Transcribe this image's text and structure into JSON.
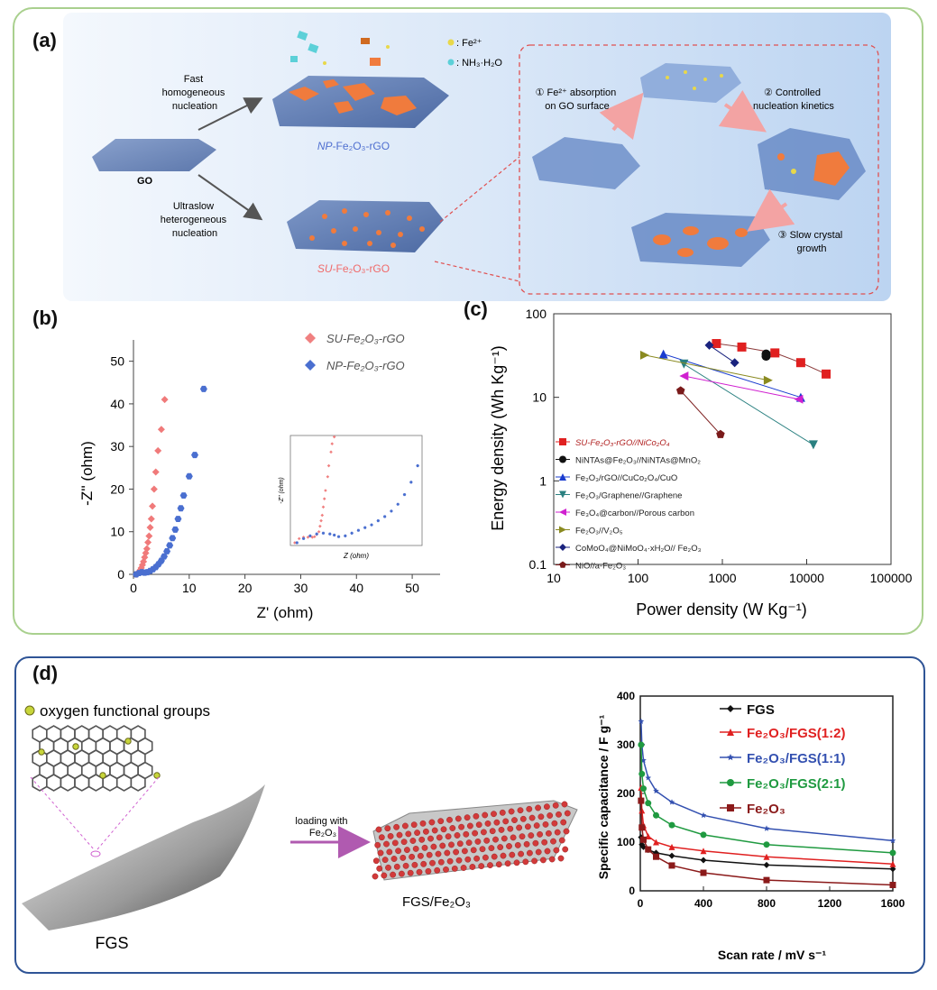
{
  "panel_a": {
    "label": "(a)",
    "go_label": "GO",
    "fast_text": [
      "Fast",
      "homogeneous",
      "nucleation"
    ],
    "ultra_text": [
      "Ultraslow",
      "heterogeneous",
      "nucleation"
    ],
    "np_label_prefix": "NP",
    "np_label_rest": "-Fe₂O₃-rGO",
    "su_label_prefix": "SU",
    "su_label_rest": "-Fe₂O₃-rGO",
    "legend_fe": ": Fe²⁺",
    "legend_nh3": ": NH₃·H₂O",
    "step1": [
      "① Fe²⁺ absorption",
      "on GO surface"
    ],
    "step2": [
      "② Controlled",
      "nucleation kinetics"
    ],
    "step3": [
      "③ Slow crystal",
      "growth"
    ],
    "colors": {
      "background": "#cfe0f6",
      "su": "#f06a6a",
      "np": "#4f6fd0"
    }
  },
  "panel_b": {
    "label": "(b)",
    "xlabel": "Z' (ohm)",
    "ylabel": "-Z'' (ohm)",
    "xticks": [
      "0",
      "10",
      "20",
      "30",
      "40",
      "50"
    ],
    "yticks": [
      "0",
      "10",
      "20",
      "30",
      "40",
      "50"
    ],
    "legend": [
      "SU-Fe₂O₃-rGO",
      "NP-Fe₂O₃-rGO"
    ],
    "inset_xlabel": "Z (ohm)",
    "inset_ylabel": "-Z'' (ohm)"
  },
  "panel_c": {
    "label": "(c)",
    "xlabel": "Power density (W Kg⁻¹)",
    "ylabel": "Energy density (Wh Kg⁻¹)",
    "xticks": [
      "10",
      "100",
      "1000",
      "10000",
      "100000"
    ],
    "yticks": [
      "0.1",
      "1",
      "10",
      "100"
    ],
    "legend": [
      "SU-Fe₂O₃-rGO//NiCo₂O₄",
      "NiNTAs@Fe₂O₃//NiNTAs@MnO₂",
      "Fe₂O₃/rGO//CuCo₂O₄/CuO",
      "Fe₂O₃/Graphene//Graphene",
      "Fe₃O₄@carbon//Porous carbon",
      "Fe₂O₃//V₂O₅",
      "CoMoO₄@NiMoO₄·xH₂O// Fe₂O₃",
      "NiO//a-Fe₂O₃"
    ]
  },
  "panel_d": {
    "label": "(d)",
    "oxygen_label": "oxygen functional groups",
    "fgs_label": "FGS",
    "arrow_label": [
      "loading with",
      "Fe₂O₃"
    ],
    "composite_label": "FGS/Fe₂O₃",
    "xlabel": "Scan rate / mV s⁻¹",
    "ylabel": "Specific capacitance / F g⁻¹",
    "xticks": [
      "0",
      "400",
      "800",
      "1200",
      "1600"
    ],
    "yticks": [
      "0",
      "100",
      "200",
      "300",
      "400"
    ],
    "legend": [
      "FGS",
      "Fe₂O₃/FGS(1:2)",
      "Fe₂O₃/FGS(1:1)",
      "Fe₂O₃/FGS(2:1)",
      "Fe₂O₃"
    ]
  },
  "chart_data": [
    {
      "type": "scatter",
      "xlabel": "Z' (ohm)",
      "ylabel": "-Z'' (ohm)",
      "xlim": [
        0,
        55
      ],
      "ylim": [
        0,
        55
      ],
      "series": [
        {
          "name": "SU-Fe2O3-rGO",
          "color": "#f07a7a",
          "x": [
            0.5,
            0.8,
            1.0,
            1.2,
            1.4,
            1.6,
            1.8,
            2.0,
            2.2,
            2.4,
            2.6,
            2.8,
            3.0,
            3.2,
            3.4,
            3.7,
            4.0,
            4.4,
            5.0,
            5.6
          ],
          "y": [
            0,
            0.3,
            0.6,
            1,
            1.5,
            2.2,
            3,
            4,
            5,
            6,
            7.5,
            9,
            11,
            13,
            16,
            20,
            24,
            29,
            34,
            41
          ]
        },
        {
          "name": "NP-Fe2O3-rGO",
          "color": "#4a6fd0",
          "x": [
            0.5,
            1,
            1.5,
            2,
            2.5,
            3,
            3.5,
            4,
            4.5,
            5,
            5.5,
            6,
            6.5,
            7,
            7.5,
            8,
            8.5,
            9,
            10,
            11,
            12.6
          ],
          "y": [
            0,
            0.3,
            0.5,
            0.4,
            0.5,
            0.8,
            1.2,
            1.7,
            2.4,
            3.2,
            4.2,
            5.4,
            6.8,
            8.5,
            10.5,
            13,
            15.5,
            18.5,
            23,
            28,
            43.5
          ]
        }
      ]
    },
    {
      "type": "line",
      "xlabel": "Power density (W Kg-1)",
      "ylabel": "Energy density (Wh Kg-1)",
      "xscale": "log",
      "yscale": "log",
      "xlim": [
        10,
        100000
      ],
      "ylim": [
        0.1,
        100
      ],
      "series": [
        {
          "name": "SU-Fe2O3-rGO//NiCo2O4",
          "color": "#e02020",
          "marker": "square",
          "x": [
            850,
            1700,
            4200,
            8500,
            17000
          ],
          "y": [
            44,
            40,
            34,
            26,
            19
          ]
        },
        {
          "name": "NiNTAs@Fe2O3//NiNTAs@MnO2",
          "color": "#111111",
          "marker": "circle",
          "x": [
            3300,
            3300
          ],
          "y": [
            33,
            31
          ]
        },
        {
          "name": "Fe2O3/rGO//CuCo2O4/CuO",
          "color": "#1a3ccf",
          "marker": "triangle-up",
          "x": [
            200,
            8500
          ],
          "y": [
            33,
            10
          ]
        },
        {
          "name": "Fe2O3/Graphene//Graphene",
          "color": "#2a8080",
          "marker": "triangle-down",
          "x": [
            350,
            12000
          ],
          "y": [
            25,
            2.7
          ]
        },
        {
          "name": "Fe3O4@carbon//Porous carbon",
          "color": "#d020d0",
          "marker": "triangle-left",
          "x": [
            350,
            8000
          ],
          "y": [
            18,
            9.5
          ]
        },
        {
          "name": "Fe2O3//V2O5",
          "color": "#8a8a20",
          "marker": "triangle-right",
          "x": [
            120,
            3500
          ],
          "y": [
            32,
            16
          ]
        },
        {
          "name": "CoMoO4@NiMoO4·xH2O// Fe2O3",
          "color": "#1a237e",
          "marker": "diamond",
          "x": [
            700,
            1400
          ],
          "y": [
            42,
            26
          ]
        },
        {
          "name": "NiO//a-Fe2O3",
          "color": "#7a1a1a",
          "marker": "pentagon",
          "x": [
            320,
            950
          ],
          "y": [
            12,
            3.6
          ]
        }
      ]
    },
    {
      "type": "line",
      "xlabel": "Scan rate / mV s-1",
      "ylabel": "Specific capacitance / F g-1",
      "xlim": [
        0,
        1600
      ],
      "ylim": [
        0,
        400
      ],
      "categories_x": [
        5,
        10,
        20,
        50,
        100,
        200,
        400,
        800,
        1600
      ],
      "series": [
        {
          "name": "FGS",
          "color": "#111111",
          "marker": "diamond",
          "values": [
            110,
            95,
            90,
            84,
            78,
            72,
            63,
            53,
            45
          ]
        },
        {
          "name": "Fe2O3/FGS(1:2)",
          "color": "#e02020",
          "marker": "triangle-up",
          "values": [
            212,
            165,
            135,
            112,
            100,
            90,
            82,
            70,
            55
          ]
        },
        {
          "name": "Fe2O3/FGS(1:1)",
          "color": "#3350b0",
          "marker": "star",
          "values": [
            348,
            300,
            268,
            232,
            205,
            182,
            155,
            128,
            103
          ]
        },
        {
          "name": "Fe2O3/FGS(2:1)",
          "color": "#1f9a40",
          "marker": "circle",
          "values": [
            300,
            240,
            210,
            180,
            155,
            135,
            115,
            95,
            78
          ]
        },
        {
          "name": "Fe2O3",
          "color": "#8b1a1a",
          "marker": "square",
          "values": [
            185,
            130,
            105,
            85,
            70,
            52,
            37,
            22,
            12
          ]
        }
      ]
    }
  ]
}
